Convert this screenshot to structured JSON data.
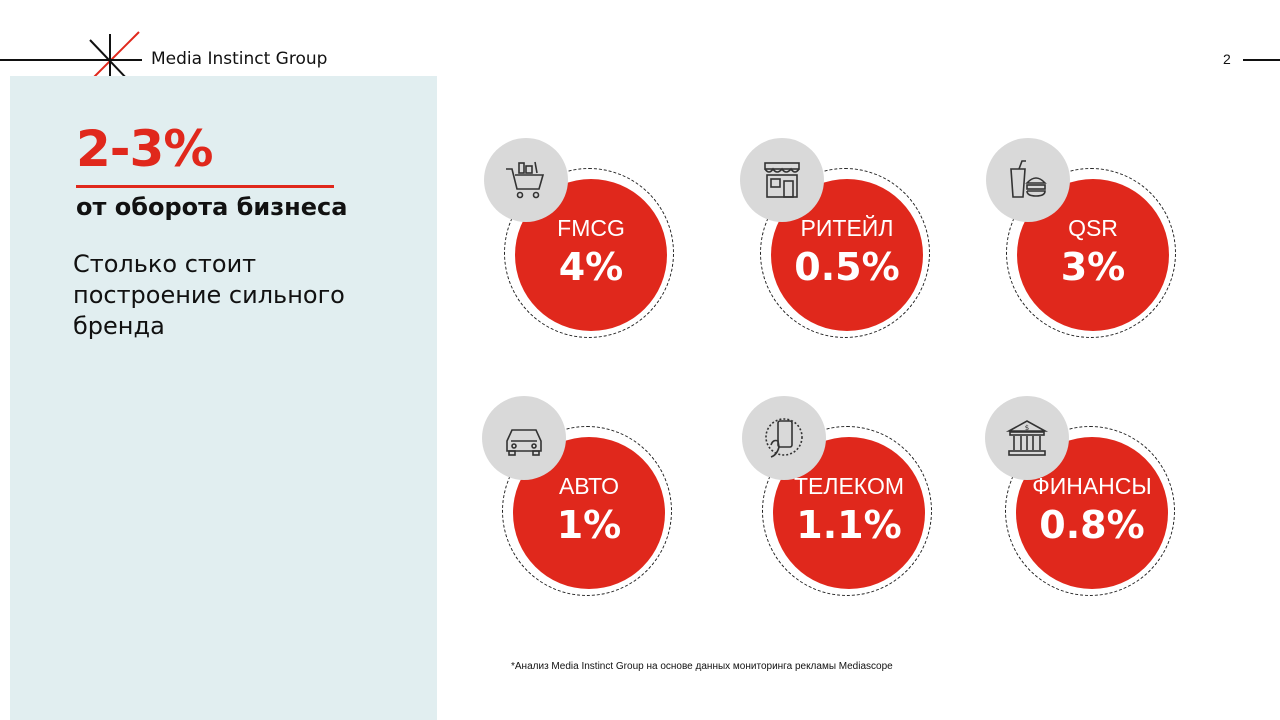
{
  "header": {
    "brand": "Media Instinct Group",
    "page_number": "2"
  },
  "side_panel": {
    "headline": "2-3%",
    "subhead": "от оборота бизнеса",
    "description": "Столько стоит построение сильного бренда"
  },
  "categories": [
    {
      "label": "FMCG",
      "value": "4%",
      "icon": "shopping-cart-icon"
    },
    {
      "label": "РИТЕЙЛ",
      "value": "0.5%",
      "icon": "storefront-icon"
    },
    {
      "label": "QSR",
      "value": "3%",
      "icon": "fast-food-icon"
    },
    {
      "label": "АВТО",
      "value": "1%",
      "icon": "car-icon"
    },
    {
      "label": "ТЕЛЕКОМ",
      "value": "1.1%",
      "icon": "smartphone-icon"
    },
    {
      "label": "ФИНАНСЫ",
      "value": "0.8%",
      "icon": "bank-icon"
    }
  ],
  "footnote": "*Анализ Media Instinct Group на основе данных мониторинга рекламы Mediascope",
  "colors": {
    "accent": "#e0281c",
    "panel": "#e1eef0",
    "icon_bubble": "#d9d9d9"
  }
}
